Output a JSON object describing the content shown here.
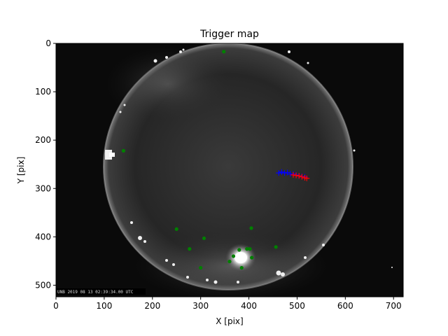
{
  "chart_data": {
    "type": "scatter",
    "title": "Trigger map",
    "xlabel": "X [pix]",
    "ylabel": "Y [pix]",
    "xlim": [
      0,
      720
    ],
    "ylim": [
      524,
      0
    ],
    "xticks": [
      0,
      100,
      200,
      300,
      400,
      500,
      600,
      700
    ],
    "yticks": [
      0,
      100,
      200,
      300,
      400,
      500
    ],
    "grid": false,
    "background_image": "all-sky camera fisheye frame",
    "timestamp_overlay": "UNB 2019 08 13 02:39:34.00 UTC",
    "colors": {
      "green_points": "#008000",
      "blue_points": "#0000ff",
      "red_points": "#ff0000",
      "sky_background": "#0a0a0a"
    },
    "series": [
      {
        "color": "green",
        "marker": "circle",
        "x": [
          348,
          140,
          250,
          307,
          405,
          277,
          456,
          300,
          368,
          360,
          380,
          396,
          402,
          406,
          385
        ],
        "y": [
          17,
          222,
          384,
          403,
          382,
          425,
          421,
          464,
          440,
          451,
          427,
          425,
          425,
          443,
          464
        ]
      },
      {
        "color": "blue",
        "marker": "plus",
        "x": [
          462,
          468,
          474,
          480,
          486,
          492,
          498,
          504,
          510,
          516
        ],
        "y": [
          268,
          266,
          268,
          267,
          270,
          270,
          272,
          274,
          275,
          276
        ]
      },
      {
        "color": "red",
        "marker": "plus",
        "x": [
          492,
          498,
          504,
          510,
          516,
          520
        ],
        "y": [
          272,
          273,
          274,
          276,
          278,
          279
        ]
      }
    ]
  }
}
